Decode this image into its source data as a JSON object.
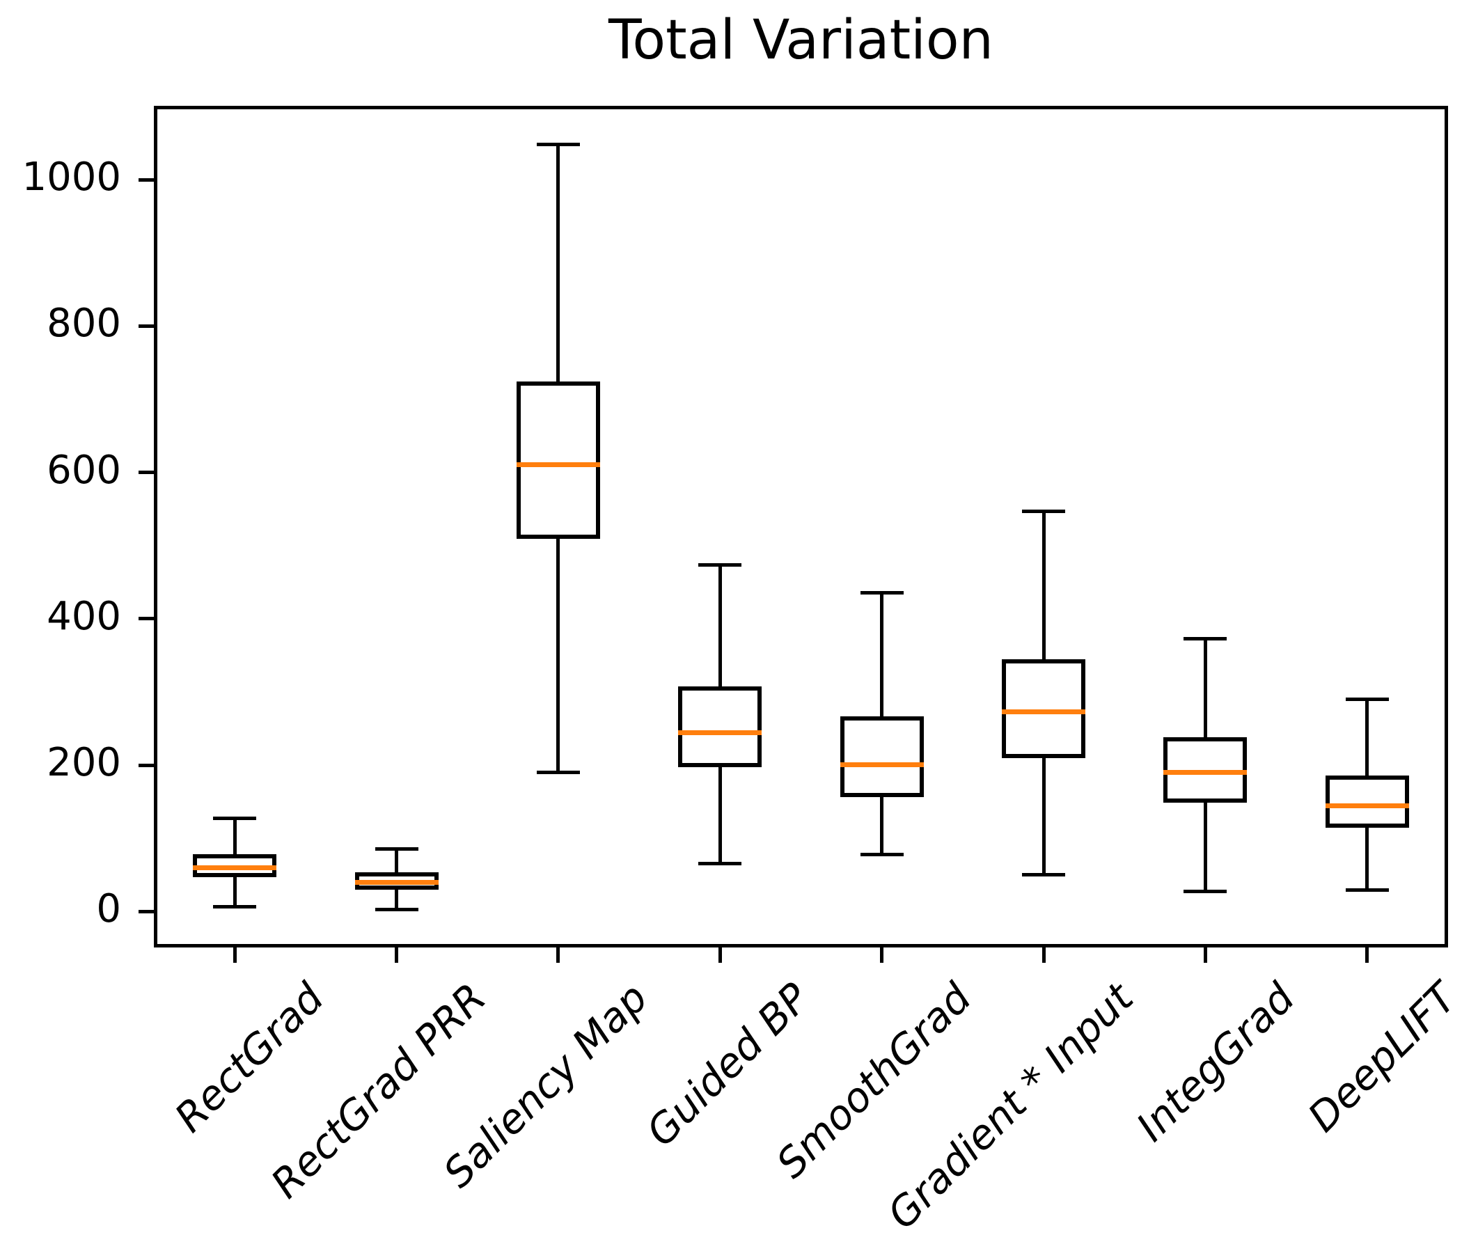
{
  "chart_data": {
    "type": "boxplot",
    "title": "Total Variation",
    "xlabel": "",
    "ylabel": "",
    "categories": [
      "RectGrad",
      "RectGrad PRR",
      "Saliency Map",
      "Guided BP",
      "SmoothGrad",
      "Gradient * Input",
      "IntegGrad",
      "DeepLIFT"
    ],
    "boxes": [
      {
        "label": "RectGrad",
        "whisker_low": 7,
        "q1": 47,
        "median": 60,
        "q3": 78,
        "whisker_high": 127
      },
      {
        "label": "RectGrad PRR",
        "whisker_low": 3,
        "q1": 30,
        "median": 40,
        "q3": 54,
        "whisker_high": 86
      },
      {
        "label": "Saliency Map",
        "whisker_low": 190,
        "q1": 509,
        "median": 611,
        "q3": 724,
        "whisker_high": 1048
      },
      {
        "label": "Guided BP",
        "whisker_low": 66,
        "q1": 197,
        "median": 244,
        "q3": 308,
        "whisker_high": 474
      },
      {
        "label": "SmoothGrad",
        "whisker_low": 78,
        "q1": 156,
        "median": 201,
        "q3": 267,
        "whisker_high": 436
      },
      {
        "label": "Gradient * Input",
        "whisker_low": 50,
        "q1": 210,
        "median": 273,
        "q3": 345,
        "whisker_high": 547
      },
      {
        "label": "IntegGrad",
        "whisker_low": 28,
        "q1": 149,
        "median": 190,
        "q3": 238,
        "whisker_high": 373
      },
      {
        "label": "DeepLIFT",
        "whisker_low": 29,
        "q1": 115,
        "median": 145,
        "q3": 186,
        "whisker_high": 290
      }
    ],
    "yticks": [
      0,
      200,
      400,
      600,
      800,
      1000
    ],
    "ylim": [
      -49,
      1101
    ],
    "grid": false,
    "legend": "none",
    "colors": {
      "median": "#ff7f0e",
      "box_line": "#000000",
      "background": "#ffffff"
    }
  }
}
